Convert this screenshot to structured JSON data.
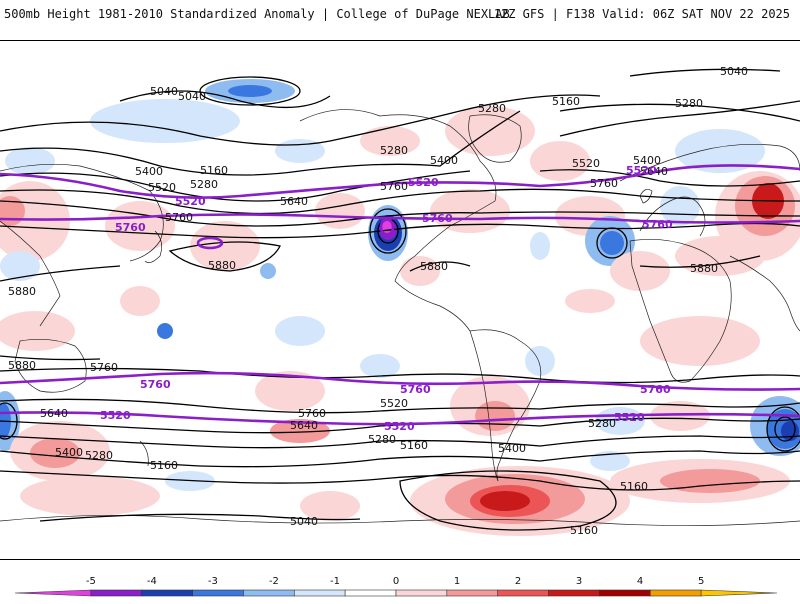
{
  "header": {
    "left": "500mb Height 1981-2010 Standardized Anomaly | College of DuPage NEXLAB",
    "right": "12Z GFS | F138 Valid: 06Z SAT NOV 22 2025"
  },
  "colorbar": {
    "ticks": [
      "-5",
      "-4",
      "-3",
      "-2",
      "-1",
      "0",
      "1",
      "2",
      "3",
      "4",
      "5"
    ],
    "colors": [
      "#e040e0",
      "#8a1ec9",
      "#1b3fb0",
      "#3a78e0",
      "#8fbcf0",
      "#d4e6fb",
      "#ffffff",
      "#fbd6d6",
      "#f39a9a",
      "#ec5555",
      "#c81a1a",
      "#a00000",
      "#f2a000",
      "#ffc400"
    ]
  },
  "map": {
    "black_contour_labels": [
      "5040",
      "5040",
      "5040",
      "5040",
      "5160",
      "5160",
      "5160",
      "5160",
      "5160",
      "5160",
      "5280",
      "5280",
      "5280",
      "5280",
      "5280",
      "5280",
      "5280",
      "5400",
      "5400",
      "5400",
      "5400",
      "5400",
      "5520",
      "5520",
      "5520",
      "5640",
      "5640",
      "5640",
      "5640",
      "5760",
      "5760",
      "5760",
      "5760",
      "5760",
      "5880",
      "5880",
      "5880",
      "5880",
      "5880"
    ],
    "purple_contour_labels": [
      "5520",
      "5520",
      "5520",
      "5520",
      "5520",
      "5520",
      "5760",
      "5760",
      "5760",
      "5760",
      "5760",
      "5760"
    ]
  }
}
